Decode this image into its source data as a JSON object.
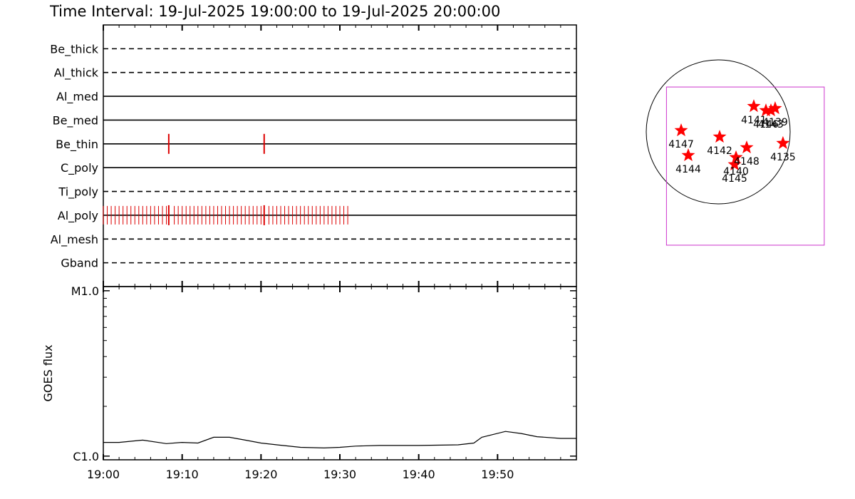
{
  "chart_data": [
    {
      "type": "timeline",
      "title": "Time Interval: 19-Jul-2025 19:00:00 to 19-Jul-2025 20:00:00",
      "xlim": [
        0,
        60
      ],
      "xticks": [
        0,
        10,
        20,
        30,
        40,
        50
      ],
      "xminorticks": [
        2,
        4,
        6,
        8,
        12,
        14,
        16,
        18,
        22,
        24,
        26,
        28,
        32,
        34,
        36,
        38,
        42,
        44,
        46,
        48,
        52,
        54,
        56,
        58
      ],
      "color": "#dd0000",
      "filters": [
        {
          "name": "Be_thick",
          "style": "dashed",
          "exposures": [],
          "long_exposures": []
        },
        {
          "name": "Al_thick",
          "style": "dashed",
          "exposures": [],
          "long_exposures": []
        },
        {
          "name": "Al_med",
          "style": "solid",
          "exposures": [],
          "long_exposures": []
        },
        {
          "name": "Be_med",
          "style": "solid",
          "exposures": [],
          "long_exposures": []
        },
        {
          "name": "Be_thin",
          "style": "solid",
          "exposures": [],
          "long_exposures": [
            8.3,
            20.4
          ]
        },
        {
          "name": "C_poly",
          "style": "solid",
          "exposures": [],
          "long_exposures": []
        },
        {
          "name": "Ti_poly",
          "style": "dashed",
          "exposures": [],
          "long_exposures": []
        },
        {
          "name": "Al_poly",
          "style": "solid",
          "exposures": [
            0,
            0.5,
            1,
            1.5,
            2,
            2.5,
            3,
            3.5,
            4,
            4.5,
            5,
            5.5,
            6,
            6.5,
            7,
            7.5,
            8,
            9,
            9.5,
            10,
            10.5,
            11,
            11.5,
            12,
            12.5,
            13,
            13.5,
            14,
            14.5,
            15,
            15.5,
            16,
            16.5,
            17,
            17.5,
            18,
            18.5,
            19,
            19.5,
            20,
            21,
            21.5,
            22,
            22.5,
            23,
            23.5,
            24,
            24.5,
            25,
            25.5,
            26,
            26.5,
            27,
            27.5,
            28,
            28.5,
            29,
            29.5,
            30,
            30.5,
            31
          ],
          "long_exposures": [
            8.3,
            20.4
          ]
        },
        {
          "name": "Al_mesh",
          "style": "dashed",
          "exposures": [],
          "long_exposures": []
        },
        {
          "name": "Gband",
          "style": "dashed",
          "exposures": [],
          "long_exposures": []
        }
      ]
    },
    {
      "type": "line",
      "ylabel": "GOES flux",
      "log_scale": true,
      "xlim": [
        0,
        60
      ],
      "xticks": [
        {
          "value": 0,
          "label": "19:00"
        },
        {
          "value": 10,
          "label": "19:10"
        },
        {
          "value": 20,
          "label": "19:20"
        },
        {
          "value": 30,
          "label": "19:30"
        },
        {
          "value": 40,
          "label": "19:40"
        },
        {
          "value": 50,
          "label": "19:50"
        }
      ],
      "xminorticks": [
        2,
        4,
        6,
        8,
        12,
        14,
        16,
        18,
        22,
        24,
        26,
        28,
        32,
        34,
        36,
        38,
        42,
        44,
        46,
        48,
        52,
        54,
        56,
        58
      ],
      "ylim": [
        9.5e-07,
        1.06e-05
      ],
      "yticks": [
        {
          "value": 1e-06,
          "label": "C1.0"
        },
        {
          "value": 1e-05,
          "label": "M1.0"
        }
      ],
      "yminorticks": [
        2e-06,
        3e-06,
        4e-06,
        5e-06,
        6e-06,
        7e-06,
        8e-06,
        9e-06
      ],
      "color": "#000000",
      "x": [
        0,
        2,
        5,
        8,
        10,
        12,
        14,
        16,
        18,
        20,
        22,
        25,
        28,
        30,
        32,
        35,
        40,
        45,
        47,
        48,
        51,
        53,
        55,
        58,
        60
      ],
      "values": [
        1.21e-06,
        1.21e-06,
        1.25e-06,
        1.19e-06,
        1.21e-06,
        1.2e-06,
        1.3e-06,
        1.3e-06,
        1.25e-06,
        1.2e-06,
        1.17e-06,
        1.13e-06,
        1.12e-06,
        1.13e-06,
        1.15e-06,
        1.16e-06,
        1.16e-06,
        1.17e-06,
        1.2e-06,
        1.3e-06,
        1.41e-06,
        1.37e-06,
        1.31e-06,
        1.28e-06,
        1.28e-06
      ]
    },
    {
      "type": "map",
      "solar_radius": 950,
      "fov_xlim": [
        -683,
        1400
      ],
      "fov_ylim": [
        -1495,
        592
      ],
      "fov_color": "#cc33cc",
      "color": "#ff0000",
      "regions": [
        {
          "name": "4147",
          "x": -489,
          "y": 19
        },
        {
          "name": "4144",
          "x": -395,
          "y": -310
        },
        {
          "name": "4142",
          "x": 19,
          "y": -66
        },
        {
          "name": "4140",
          "x": 235,
          "y": -338
        },
        {
          "name": "4145",
          "x": 216,
          "y": -432
        },
        {
          "name": "4148",
          "x": 376,
          "y": -207
        },
        {
          "name": "4141",
          "x": 470,
          "y": 338
        },
        {
          "name": "4146",
          "x": 630,
          "y": 282
        },
        {
          "name": "4143",
          "x": 696,
          "y": 282
        },
        {
          "name": "4139",
          "x": 752,
          "y": 310
        },
        {
          "name": "4135",
          "x": 855,
          "y": -150
        }
      ]
    }
  ]
}
